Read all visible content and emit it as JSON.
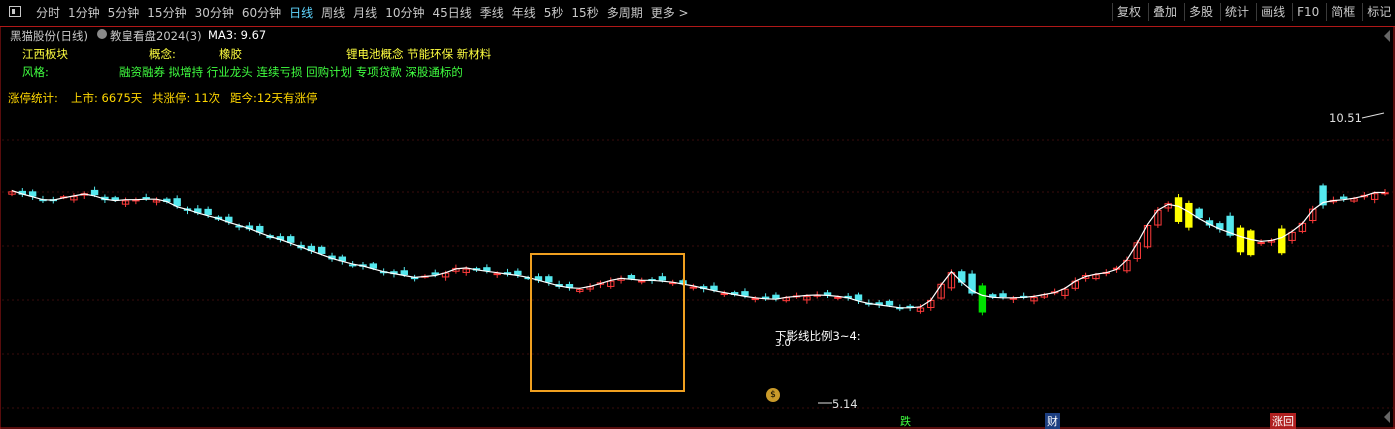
{
  "toolbar": {
    "periods": [
      "分时",
      "1分钟",
      "5分钟",
      "15分钟",
      "30分钟",
      "60分钟",
      "日线",
      "周线",
      "月线",
      "10分钟",
      "45日线",
      "季线",
      "年线",
      "5秒",
      "15秒",
      "多周期",
      "更多 >"
    ],
    "active_period": "日线",
    "right_buttons": [
      "复权",
      "叠加",
      "多股",
      "统计",
      "画线",
      "F10",
      "简框",
      "标记"
    ]
  },
  "header": {
    "stock": "黑猫股份(日线)",
    "strategy": "教皇看盘2024(3)",
    "ma": "MA3: 9.67"
  },
  "info": {
    "sector": "江西板块",
    "concept_label": "概念:",
    "concept_1": "橡胶",
    "concept_2": "锂电池概念 节能环保 新材料",
    "style_label": "风格:",
    "style_value": "融资融券 拟增持 行业龙头 连续亏损 回购计划 专项贷款 深股通标的"
  },
  "limit_stats": {
    "label": "涨停统计:",
    "listed": "上市: 6675天",
    "total": "共涨停: 11次",
    "since": "距今:12天有涨停"
  },
  "annotations": {
    "high_label": "10.51",
    "low_label": "5.14",
    "shadow_label": "下影线比例3~4:",
    "shadow_value": "3.0",
    "badge_die": "跌",
    "badge_cai": "财",
    "badge_zhanghui": "涨回"
  },
  "colors": {
    "up": "#ff3b3b",
    "down": "#55e8ee",
    "ma": "#ffffff",
    "yellow": "#ffff00",
    "green": "#00e000",
    "box": "#f0a020",
    "info_yellow": "#ffff40",
    "info_green": "#40ff40",
    "stats_yellow": "#ffd700"
  },
  "chart_data": {
    "type": "candlestick",
    "ma_label": "MA3",
    "ma_value": 9.67,
    "y_axis_price_range": [
      5.0,
      10.8
    ],
    "high": 10.51,
    "low": 5.14,
    "close_series": [
      9.31,
      9.24,
      9.18,
      9.12,
      9.11,
      9.16,
      9.2,
      9.24,
      9.2,
      9.13,
      9.1,
      9.12,
      9.12,
      9.13,
      9.13,
      9.08,
      8.97,
      8.91,
      8.84,
      8.78,
      8.72,
      8.64,
      8.58,
      8.51,
      8.42,
      8.34,
      8.28,
      8.2,
      8.12,
      8.04,
      7.96,
      7.88,
      7.82,
      7.76,
      7.72,
      7.66,
      7.6,
      7.56,
      7.52,
      7.48,
      7.5,
      7.52,
      7.58,
      7.66,
      7.68,
      7.64,
      7.61,
      7.58,
      7.55,
      7.52,
      7.48,
      7.42,
      7.36,
      7.3,
      7.26,
      7.25,
      7.29,
      7.35,
      7.42,
      7.46,
      7.44,
      7.42,
      7.42,
      7.4,
      7.38,
      7.34,
      7.3,
      7.25,
      7.2,
      7.16,
      7.12,
      7.08,
      7.05,
      7.03,
      7.02,
      7.06,
      7.08,
      7.1,
      7.11,
      7.1,
      7.08,
      7.05,
      6.98,
      6.93,
      6.9,
      6.87,
      6.84,
      6.84,
      6.86,
      7.0,
      7.32,
      7.6,
      7.38,
      7.2,
      7.1,
      7.06,
      7.05,
      7.05,
      7.06,
      7.08,
      7.12,
      7.16,
      7.25,
      7.4,
      7.5,
      7.55,
      7.58,
      7.65,
      7.85,
      8.2,
      8.6,
      8.9,
      9.02,
      8.98,
      8.86,
      8.72,
      8.6,
      8.5,
      8.42,
      8.34,
      8.28,
      8.24,
      8.26,
      8.32,
      8.45,
      8.62,
      8.9,
      9.06,
      9.1,
      9.12,
      9.15,
      9.2,
      9.27,
      9.27
    ]
  }
}
